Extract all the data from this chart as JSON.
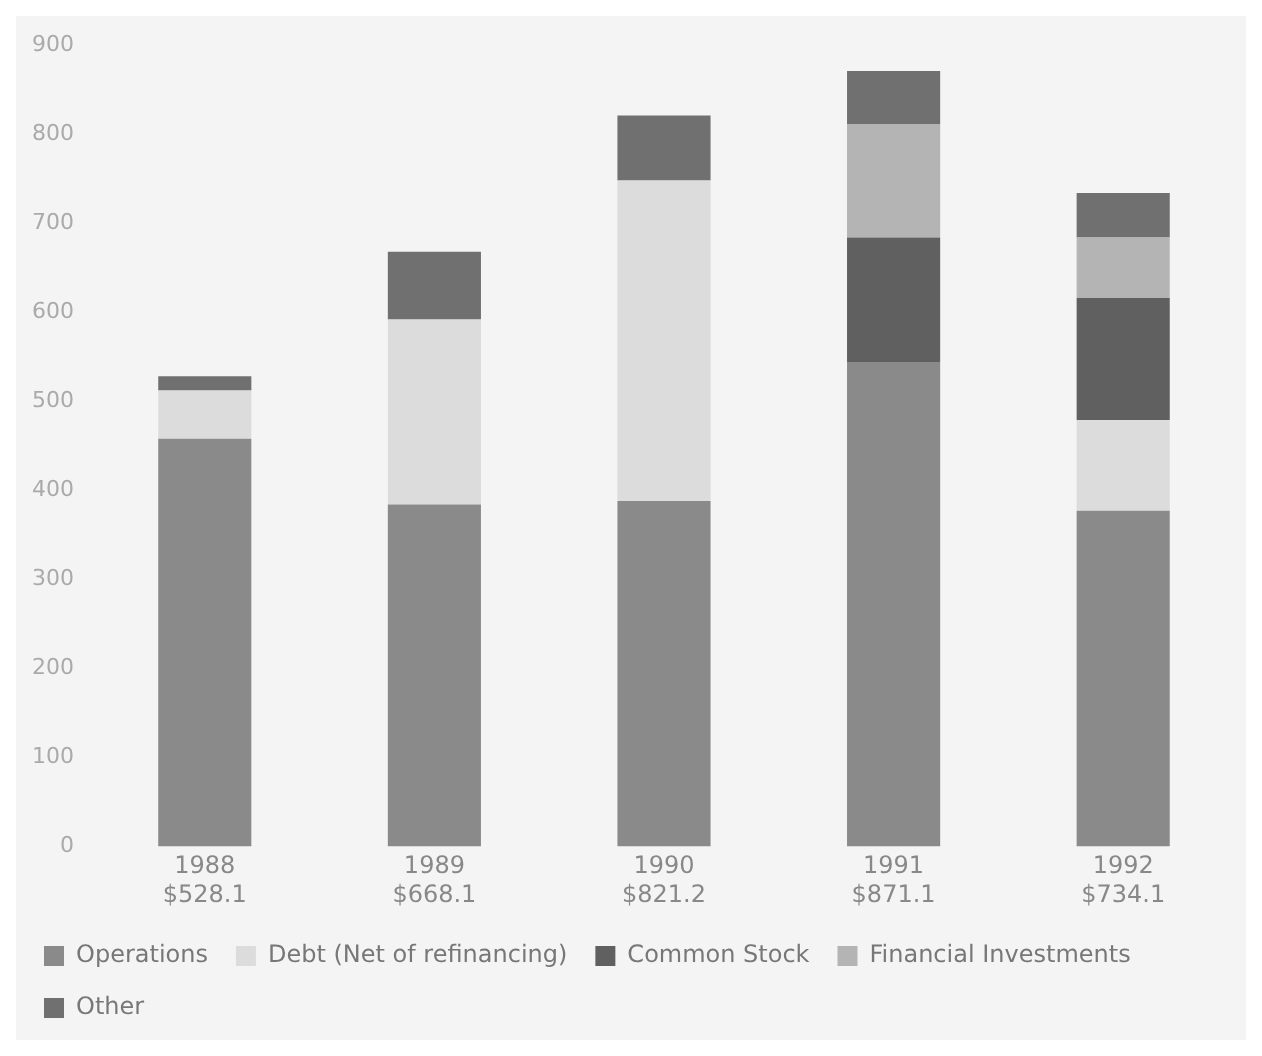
{
  "chart_data": {
    "type": "bar",
    "stacked": true,
    "categories": [
      "1988\n$528.1",
      "1989\n$668.1",
      "1990\n$821.2",
      "1991\n$871.1",
      "1992\n$734.1"
    ],
    "series": [
      {
        "name": "Operations",
        "color": "#8a8a8a",
        "values": [
          458,
          384,
          388,
          544,
          377
        ]
      },
      {
        "name": "Debt (Net of refinancing)",
        "color": "#dcdcdc",
        "values": [
          54,
          208,
          360,
          null,
          102
        ]
      },
      {
        "name": "Common Stock",
        "color": "#606060",
        "values": [
          null,
          null,
          null,
          140,
          137
        ]
      },
      {
        "name": "Financial Investments",
        "color": "#b4b4b4",
        "values": [
          null,
          null,
          null,
          127,
          68
        ]
      },
      {
        "name": "Other",
        "color": "#707070",
        "values": [
          16,
          76,
          73,
          60,
          50
        ]
      }
    ],
    "ylim": [
      0,
      900
    ],
    "yticks": [
      0,
      100,
      200,
      300,
      400,
      500,
      600,
      700,
      800,
      900
    ],
    "grid": false,
    "legend": "bottom"
  }
}
